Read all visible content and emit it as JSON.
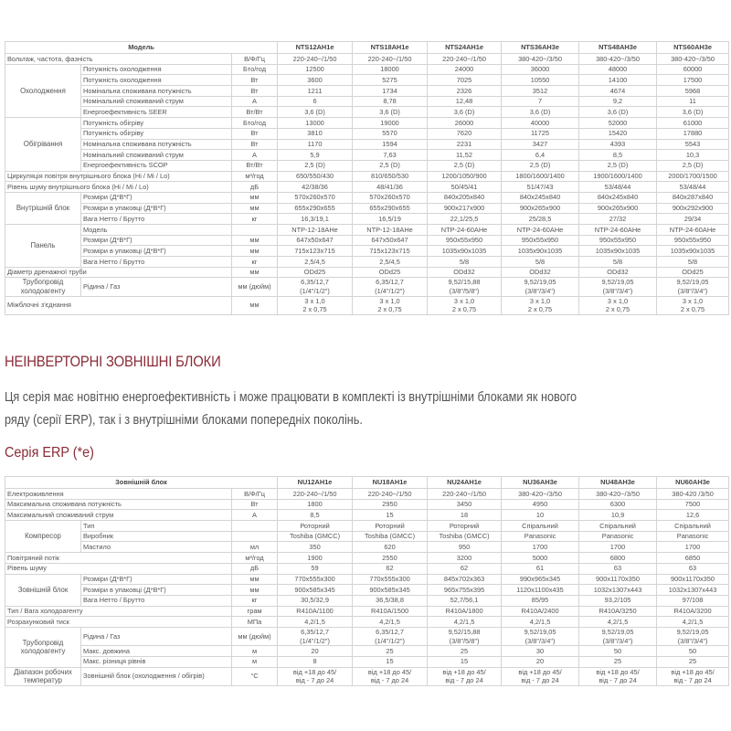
{
  "indoor_table": {
    "header_label": "Модель",
    "models": [
      "NTS12AH1e",
      "NTS18AH1e",
      "NTS24AH1e",
      "NTS36AH3e",
      "NTS48AH3e",
      "NTS60AH3e"
    ],
    "rows": [
      {
        "label": "Вольтаж, частота, фазність",
        "unit": "В/Ф/Гц",
        "values": [
          "220-240~/1/50",
          "220-240~/1/50",
          "220-240~/1/50",
          "380-420~/3/50",
          "380-420~/3/50",
          "380-420~/3/50"
        ]
      },
      {
        "group": "Охолодження",
        "param": "Потужність охолодження",
        "unit": "Бто/год",
        "values": [
          "12500",
          "18000",
          "24000",
          "36000",
          "48000",
          "60000"
        ]
      },
      {
        "group": "Охолодження",
        "param": "Потужність охолодження",
        "unit": "Вт",
        "values": [
          "3600",
          "5275",
          "7025",
          "10550",
          "14100",
          "17500"
        ]
      },
      {
        "group": "Охолодження",
        "param": "Номінальна споживана потужність",
        "unit": "Вт",
        "values": [
          "1211",
          "1734",
          "2326",
          "3512",
          "4674",
          "5968"
        ]
      },
      {
        "group": "Охолодження",
        "param": "Номінальний споживаний струм",
        "unit": "А",
        "values": [
          "6",
          "8,78",
          "12,48",
          "7",
          "9,2",
          "11"
        ]
      },
      {
        "group": "Охолодження",
        "param": "Енергоефективність SEER",
        "unit": "Вт/Вт",
        "values": [
          "3,6 (D)",
          "3,6 (D)",
          "3,6 (D)",
          "3,6 (D)",
          "3,6 (D)",
          "3,6 (D)"
        ]
      },
      {
        "group": "Обігрівання",
        "param": "Потужність обігріву",
        "unit": "Бто/год",
        "values": [
          "13000",
          "19000",
          "26000",
          "40000",
          "52000",
          "61000"
        ]
      },
      {
        "group": "Обігрівання",
        "param": "Потужність обігріву",
        "unit": "Вт",
        "values": [
          "3810",
          "5570",
          "7620",
          "11725",
          "15420",
          "17880"
        ]
      },
      {
        "group": "Обігрівання",
        "param": "Номінальна споживана потужність",
        "unit": "Вт",
        "values": [
          "1170",
          "1594",
          "2231",
          "3427",
          "4393",
          "5543"
        ]
      },
      {
        "group": "Обігрівання",
        "param": "Номінальний споживаний струм",
        "unit": "А",
        "values": [
          "5,9",
          "7,63",
          "11,52",
          "6,4",
          "8,5",
          "10,3"
        ]
      },
      {
        "group": "Обігрівання",
        "param": "Енергоефективність SCOP",
        "unit": "Вт/Вт",
        "values": [
          "2,5 (D)",
          "2,5 (D)",
          "2,5 (D)",
          "2,5 (D)",
          "2,5 (D)",
          "2,5 (D)"
        ]
      },
      {
        "label": "Циркуляція повітря внутрішнього блока (Hi / Mi / Lo)",
        "unit": "м³/год",
        "values": [
          "650/550/430",
          "810/650/530",
          "1200/1050/900",
          "1800/1600/1400",
          "1900/1600/1400",
          "2000/1700/1500"
        ]
      },
      {
        "label": "Рівень шуму внутрішнього блока (Hi / Mi / Lo)",
        "unit": "дБ",
        "values": [
          "42/38/36",
          "48/41/36",
          "50/45/41",
          "51/47/43",
          "53/48/44",
          "53/48/44"
        ]
      },
      {
        "group": "Внутрішній блок",
        "param": "Розміри (Д*В*Г)",
        "unit": "мм",
        "values": [
          "570x260x570",
          "570x260x570",
          "840x205x840",
          "840x245x840",
          "840x245x840",
          "840x287x840"
        ]
      },
      {
        "group": "Внутрішній блок",
        "param": "Розміри в упаковці (Д*В*Г)",
        "unit": "мм",
        "values": [
          "655x290x655",
          "655x290x655",
          "900x217x900",
          "900x265x900",
          "900x265x900",
          "900x292x900"
        ]
      },
      {
        "group": "Внутрішній блок",
        "param": "Вага Нетто / Брутто",
        "unit": "кг",
        "values": [
          "16,3/19,1",
          "16,5/19",
          "22,1/25,5",
          "25/28,5",
          "27/32",
          "29/34"
        ]
      },
      {
        "group": "Панель",
        "param": "Модель",
        "unit": "",
        "values": [
          "NTP-12-18AHe",
          "NTP-12-18AHe",
          "NTP-24-60AHe",
          "NTP-24-60AHe",
          "NTP-24-60AHe",
          "NTP-24-60AHe"
        ]
      },
      {
        "group": "Панель",
        "param": "Розміри (Д*В*Г)",
        "unit": "мм",
        "values": [
          "647x50x647",
          "647x50x647",
          "950x55x950",
          "950x55x950",
          "950x55x950",
          "950x55x950"
        ]
      },
      {
        "group": "Панель",
        "param": "Розміри в упаковці (Д*В*Г)",
        "unit": "мм",
        "values": [
          "715x123x715",
          "715x123x715",
          "1035x90x1035",
          "1035x90x1035",
          "1035x90x1035",
          "1035x90x1035"
        ]
      },
      {
        "group": "Панель",
        "param": "Вага Нетто / Брутто",
        "unit": "кг",
        "values": [
          "2,5/4,5",
          "2,5/4,5",
          "5/8",
          "5/8",
          "5/8",
          "5/8"
        ]
      },
      {
        "label": "Діаметр дренажної труби",
        "unit": "мм",
        "values": [
          "ODd25",
          "ODd25",
          "ODd32",
          "ODd32",
          "ODd32",
          "ODd25"
        ]
      },
      {
        "group": "Трубопровід холодоагенту",
        "param": "Рідина / Газ",
        "unit": "мм (дюйм)",
        "values": [
          "6,35/12,7\n(1/4\"/1/2\")",
          "6,35/12,7\n(1/4\"/1/2\")",
          "9,52/15,88\n(3/8\"/5/8\")",
          "9,52/19,05\n(3/8\"/3/4\")",
          "9,52/19,05\n(3/8\"/3/4\")",
          "9,52/19,05\n(3/8\"/3/4\")"
        ]
      },
      {
        "label": "Міжблочні з'єднання",
        "unit": "мм",
        "values": [
          "3 x 1,0\n2 x 0,75",
          "3 x 1,0\n2 x 0,75",
          "3 x 1,0\n2 x 0,75",
          "3 x 1,0\n2 x 0,75",
          "3 x 1,0\n2 x 0,75",
          "3 x 1,0\n2 x 0,75"
        ]
      }
    ]
  },
  "section": {
    "title": "НЕІНВЕРТОРНІ ЗОВНІШНІ БЛОКИ",
    "paragraph_line1": "Ця серія має новітню енергоефективність і може працювати в комплекті із внутрішніми блоками як нового",
    "paragraph_line2": "ряду (серії ERP), так і з внутрішніми блоками попередніх поколінь.",
    "series_title": "Серія ERP (*e)"
  },
  "outdoor_table": {
    "header_label": "Зовнішній блок",
    "models": [
      "NU12AH1e",
      "NU18AH1e",
      "NU24AH1e",
      "NU36AH3e",
      "NU48AH3e",
      "NU60AH3e"
    ],
    "rows": [
      {
        "label": "Електроживлення",
        "unit": "В/Ф/Гц",
        "values": [
          "220-240~/1/50",
          "220-240~/1/50",
          "220-240~/1/50",
          "380-420~/3/50",
          "380-420~/3/50",
          "380-420 /3/50"
        ]
      },
      {
        "label": "Максимальна споживана потужність",
        "unit": "Вт",
        "values": [
          "1800",
          "2950",
          "3450",
          "4950",
          "6300",
          "7500"
        ]
      },
      {
        "label": "Максимальний споживаний струм",
        "unit": "А",
        "values": [
          "8,5",
          "15",
          "18",
          "10",
          "10,9",
          "12,6"
        ]
      },
      {
        "group": "Компресор",
        "param": "Тип",
        "unit": "",
        "values": [
          "Роторний",
          "Роторний",
          "Роторний",
          "Спіральний",
          "Спіральний",
          "Спіральний"
        ]
      },
      {
        "group": "Компресор",
        "param": "Виробник",
        "unit": "",
        "values": [
          "Toshiba (GMCC)",
          "Toshiba (GMCC)",
          "Toshiba (GMCC)",
          "Panasonic",
          "Panasonic",
          "Panasonic"
        ]
      },
      {
        "group": "Компресор",
        "param": "Мастило",
        "unit": "мл",
        "values": [
          "350",
          "620",
          "950",
          "1700",
          "1700",
          "1700"
        ]
      },
      {
        "label": "Повітряний потік",
        "unit": "м³/год",
        "values": [
          "1900",
          "2550",
          "3200",
          "5000",
          "6800",
          "6850"
        ]
      },
      {
        "label": "Рівень шуму",
        "unit": "дБ",
        "values": [
          "59",
          "62",
          "62",
          "61",
          "63",
          "63"
        ]
      },
      {
        "group": "Зовнішній блок",
        "param": "Розміри (Д*В*Г)",
        "unit": "мм",
        "values": [
          "770x555x300",
          "770x555x300",
          "845x702x363",
          "990x965x345",
          "900x1170x350",
          "900x1170x350"
        ]
      },
      {
        "group": "Зовнішній блок",
        "param": "Розміри в упаковці (Д*В*Г)",
        "unit": "мм",
        "values": [
          "900x585x345",
          "900x585x345",
          "965x755x395",
          "1120x1100x435",
          "1032x1307x443",
          "1032x1307x443"
        ]
      },
      {
        "group": "Зовнішній блок",
        "param": "Вага Нетто / Брутто",
        "unit": "кг",
        "values": [
          "30,5/32,9",
          "36,5/38,8",
          "52,7/56,1",
          "85/95",
          "93,2/105",
          "97/108"
        ]
      },
      {
        "label": "Тип / Вага холодоагенту",
        "unit": "грам",
        "values": [
          "R410A/1100",
          "R410A/1500",
          "R410A/1800",
          "R410A/2400",
          "R410A/3250",
          "R410A/3200"
        ]
      },
      {
        "label": "Розрахунковий тиск",
        "unit": "МПа",
        "values": [
          "4,2/1,5",
          "4,2/1,5",
          "4,2/1,5",
          "4,2/1,5",
          "4,2/1,5",
          "4,2/1,5"
        ]
      },
      {
        "group": "Трубопровід холодоагенту",
        "param": "Рідина / Газ",
        "unit": "мм (дюйм)",
        "values": [
          "6,35/12,7\n(1/4\"/1/2\")",
          "6,35/12,7\n(1/4\"/1/2\")",
          "9,52/15,88\n(3/8\"/5/8\")",
          "9,52/19,05\n(3/8\"/3/4\")",
          "9,52/19,05\n(3/8\"/3/4\")",
          "9,52/19,05\n(3/8\"/3/4\")"
        ]
      },
      {
        "group": "Трубопровід холодоагенту",
        "param": "Макс. довжина",
        "unit": "м",
        "values": [
          "20",
          "25",
          "25",
          "30",
          "50",
          "50"
        ]
      },
      {
        "group": "Трубопровід холодоагенту",
        "param": "Макс. різниця рівнів",
        "unit": "м",
        "values": [
          "8",
          "15",
          "15",
          "20",
          "25",
          "25"
        ]
      },
      {
        "group": "Діапазон робочих температур",
        "param": "Зовнішній блок (охолодження / обігрів)",
        "unit": "°C",
        "values": [
          "від +18 до 45/\nвід - 7 до 24",
          "від +18 до 45/\nвід - 7 до 24",
          "від +18 до 45/\nвід - 7 до 24",
          "від +18 до 45/\nвід - 7 до 24",
          "від +18 до 45/\nвід - 7 до 24",
          "від +18 до 45/\nвід - 7 до 24"
        ]
      }
    ]
  },
  "colors": {
    "accent": "#8a2a36",
    "text": "#555555",
    "border": "#d4d4d4"
  }
}
